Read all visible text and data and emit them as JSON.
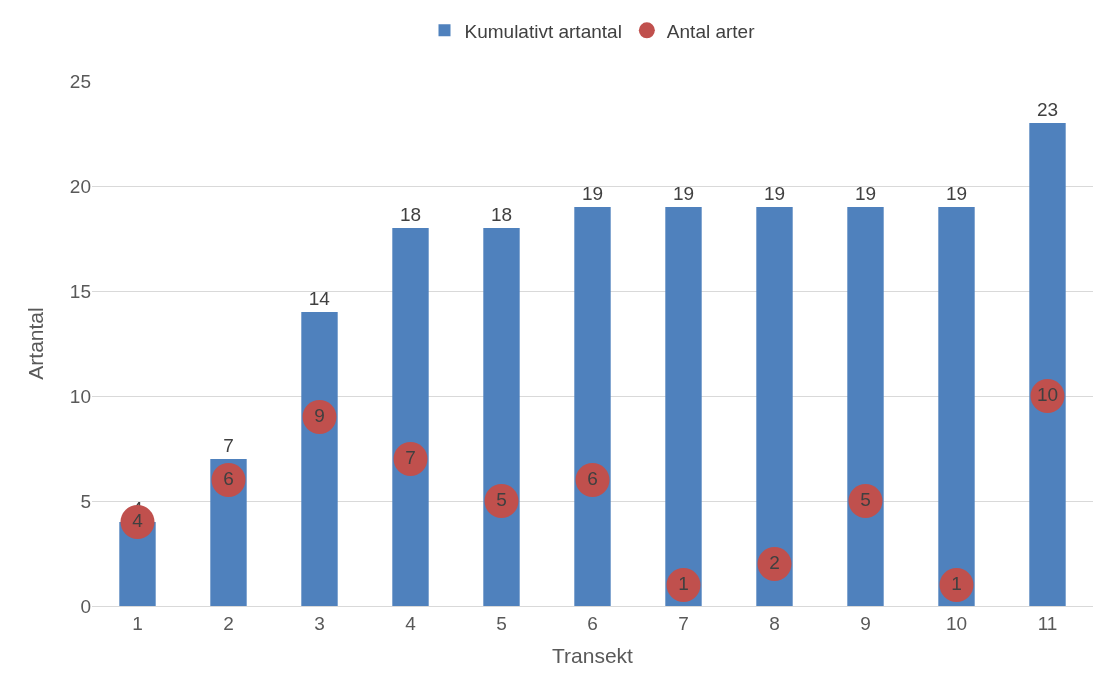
{
  "chart_data": {
    "type": "bar",
    "xlabel": "Transekt",
    "ylabel": "Artantal",
    "categories": [
      "1",
      "2",
      "3",
      "4",
      "5",
      "6",
      "7",
      "8",
      "9",
      "10",
      "11"
    ],
    "series": [
      {
        "name": "Kumulativt artantal",
        "color": "#4f81bd",
        "values": [
          4,
          7,
          14,
          18,
          18,
          19,
          19,
          19,
          19,
          19,
          23
        ]
      },
      {
        "name": "Antal arter",
        "type": "scatter",
        "color": "#c0504d",
        "values": [
          4,
          6,
          9,
          7,
          5,
          6,
          1,
          2,
          5,
          1,
          10
        ]
      }
    ],
    "ylim": [
      0,
      25
    ],
    "yticks": [
      0,
      5,
      10,
      15,
      20,
      25
    ],
    "grid": "y",
    "legend": "top",
    "marker": "circle",
    "data_labels": true
  }
}
